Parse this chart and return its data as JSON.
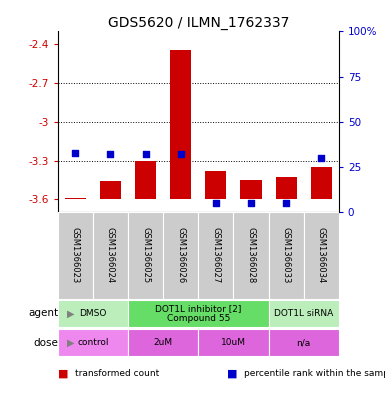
{
  "title": "GDS5620 / ILMN_1762337",
  "samples": [
    "GSM1366023",
    "GSM1366024",
    "GSM1366025",
    "GSM1366026",
    "GSM1366027",
    "GSM1366028",
    "GSM1366033",
    "GSM1366034"
  ],
  "bar_values": [
    -3.59,
    -3.46,
    -3.3,
    -2.44,
    -3.38,
    -3.45,
    -3.43,
    -3.35
  ],
  "blue_dot_values": [
    33,
    32,
    32,
    32,
    5,
    5,
    5,
    30
  ],
  "ylim_left": [
    -3.7,
    -2.3
  ],
  "ylim_right": [
    0,
    100
  ],
  "yticks_left": [
    -3.6,
    -3.3,
    -3.0,
    -2.7,
    -2.4
  ],
  "yticks_right": [
    0,
    25,
    50,
    75,
    100
  ],
  "ytick_labels_left": [
    "-3.6",
    "-3.3",
    "-3",
    "-2.7",
    "-2.4"
  ],
  "ytick_labels_right": [
    "0",
    "25",
    "50",
    "75",
    "100%"
  ],
  "grid_values": [
    -2.7,
    -3.0,
    -3.3
  ],
  "bar_color": "#cc0000",
  "dot_color": "#0000cc",
  "bar_bottom": -3.6,
  "agent_groups": [
    {
      "label": "DMSO",
      "start": 0,
      "end": 2,
      "color": "#bbeebb"
    },
    {
      "label": "DOT1L inhibitor [2]\nCompound 55",
      "start": 2,
      "end": 6,
      "color": "#66dd66"
    },
    {
      "label": "DOT1L siRNA",
      "start": 6,
      "end": 8,
      "color": "#bbeebb"
    }
  ],
  "dose_groups": [
    {
      "label": "control",
      "start": 0,
      "end": 2,
      "color": "#ee88ee"
    },
    {
      "label": "2uM",
      "start": 2,
      "end": 4,
      "color": "#dd66dd"
    },
    {
      "label": "10uM",
      "start": 4,
      "end": 6,
      "color": "#dd66dd"
    },
    {
      "label": "n/a",
      "start": 6,
      "end": 8,
      "color": "#dd66dd"
    }
  ],
  "legend_items": [
    {
      "color": "#cc0000",
      "label": "transformed count"
    },
    {
      "color": "#0000cc",
      "label": "percentile rank within the sample"
    }
  ],
  "agent_label": "agent",
  "dose_label": "dose",
  "sample_bg_color": "#cccccc",
  "left_axis_color": "#cc0000",
  "right_axis_color": "#0000cc",
  "fig_width": 3.85,
  "fig_height": 3.93,
  "dpi": 100
}
